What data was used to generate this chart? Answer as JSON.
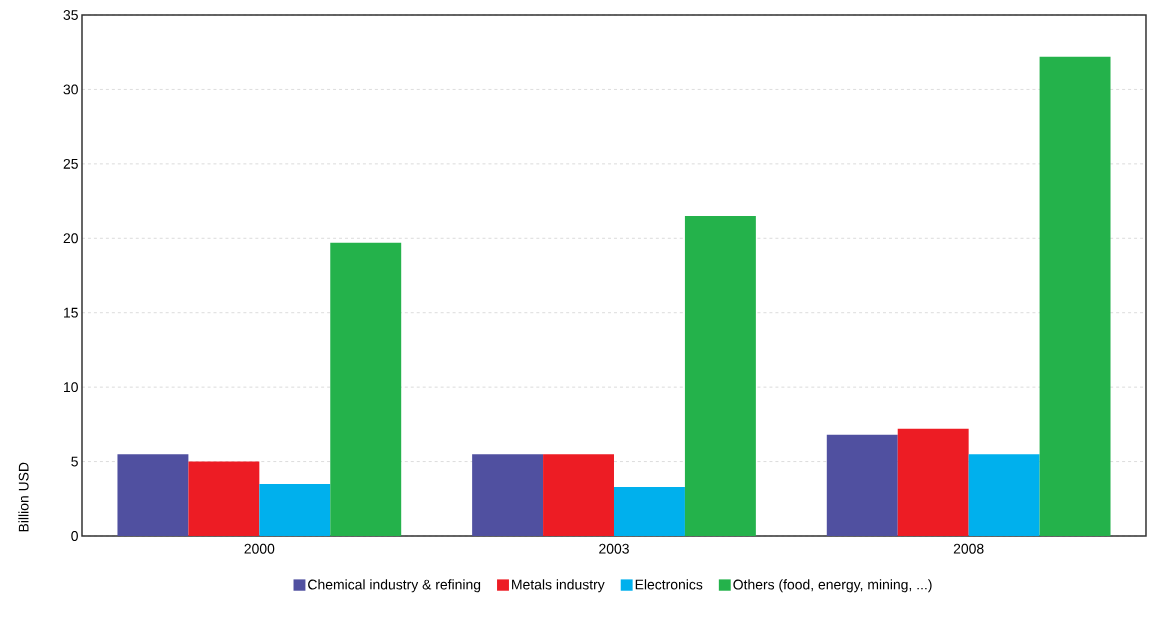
{
  "chart_data": {
    "type": "bar",
    "ylabel": "Billion USD",
    "categories": [
      "2000",
      "2003",
      "2008"
    ],
    "series": [
      {
        "name": "Chemical industry & refining",
        "color": "#5050a0",
        "values": [
          5.5,
          5.5,
          6.8
        ]
      },
      {
        "name": "Metals industry",
        "color": "#ed1c24",
        "values": [
          5.0,
          5.5,
          7.2
        ]
      },
      {
        "name": "Electronics",
        "color": "#00b0ed",
        "values": [
          3.5,
          3.3,
          5.5
        ]
      },
      {
        "name": "Others (food, energy, mining, ...)",
        "color": "#24b24b",
        "values": [
          19.7,
          21.5,
          32.2
        ]
      }
    ],
    "ylim": [
      0,
      35
    ],
    "yticks": [
      0,
      5,
      10,
      15,
      20,
      25,
      30,
      35
    ],
    "grid": "y",
    "legend": "bottom"
  }
}
